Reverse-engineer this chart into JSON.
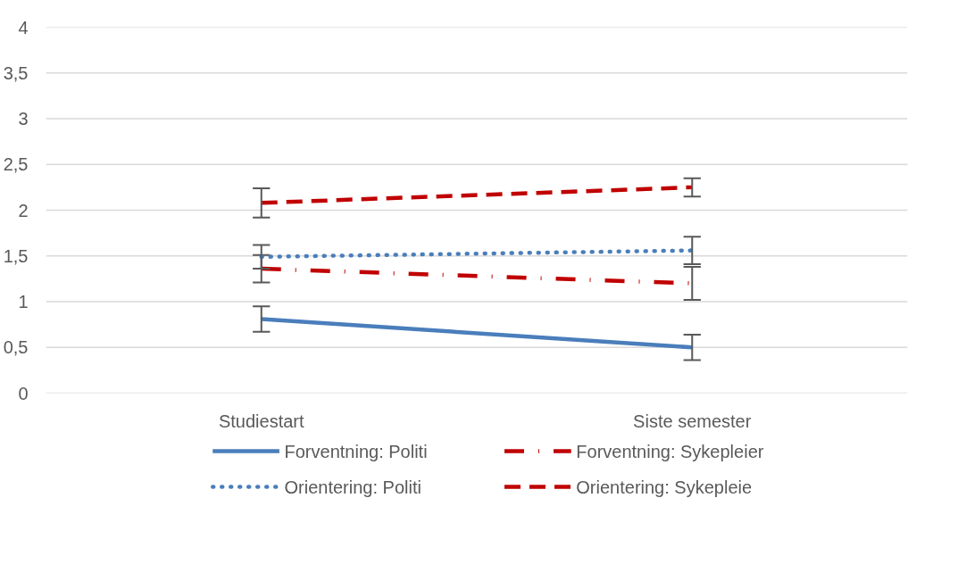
{
  "chart_data": {
    "type": "line",
    "categories": [
      "Studiestart",
      "Siste semester"
    ],
    "ylim": [
      0,
      4
    ],
    "yticks": [
      0,
      {
        "value": 0.5,
        "label": "0,5"
      },
      1,
      {
        "value": 1.5,
        "label": "1,5"
      },
      2,
      {
        "value": 2.5,
        "label": "2,5"
      },
      3,
      {
        "value": 3.5,
        "label": "3,5"
      },
      4
    ],
    "grid": "y",
    "legend": "bottom",
    "marker": "none",
    "series": [
      {
        "name": "Forventning: Politi",
        "color": "#4a7ebb",
        "line_style": "solid",
        "values": [
          0.81,
          0.5
        ],
        "errors": [
          0.14,
          0.14
        ]
      },
      {
        "name": "Forventning: Sykepleier",
        "color": "#c00000",
        "line_style": "dashdot",
        "values": [
          1.36,
          1.2
        ],
        "errors": [
          0.15,
          0.18
        ]
      },
      {
        "name": "Orientering: Politi",
        "color": "#4a7ebb",
        "line_style": "dotted",
        "values": [
          1.49,
          1.56
        ],
        "errors": [
          0.13,
          0.15
        ]
      },
      {
        "name": "Orientering: Sykepleie",
        "color": "#c00000",
        "line_style": "dashed",
        "values": [
          2.08,
          2.25
        ],
        "errors": [
          0.16,
          0.1
        ]
      }
    ]
  }
}
